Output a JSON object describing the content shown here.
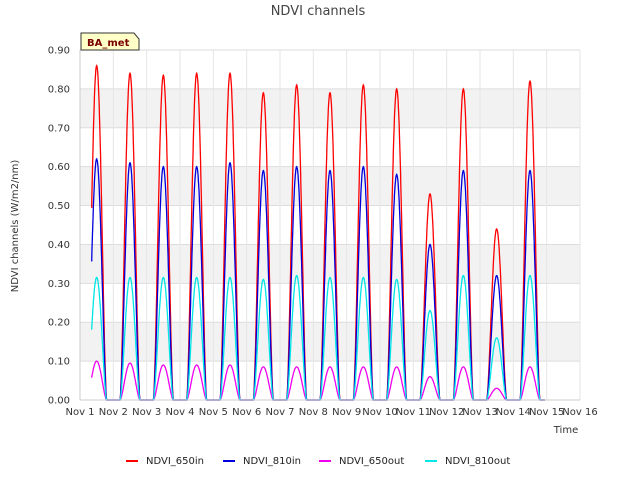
{
  "chart_data": {
    "type": "line",
    "title": "NDVI channels",
    "xlabel": "Time",
    "ylabel": "NDVI channels (W/m2/nm)",
    "xlim": [
      1,
      16
    ],
    "ylim": [
      0,
      0.9
    ],
    "x_ticks": [
      "Nov 1",
      "Nov 2",
      "Nov 3",
      "Nov 4",
      "Nov 5",
      "Nov 6",
      "Nov 7",
      "Nov 8",
      "Nov 9",
      "Nov 10",
      "Nov 11",
      "Nov 12",
      "Nov 13",
      "Nov 14",
      "Nov 15",
      "Nov 16"
    ],
    "y_ticks": [
      "0.00",
      "0.10",
      "0.20",
      "0.30",
      "0.40",
      "0.50",
      "0.60",
      "0.70",
      "0.80",
      "0.90"
    ],
    "annotation": "BA_met",
    "grid": true,
    "legend_position": "bottom",
    "series": [
      {
        "name": "NDVI_650in",
        "color": "#ff0000",
        "daily_peak_day": [
          1.5,
          2.5,
          3.5,
          4.5,
          5.5,
          6.5,
          7.5,
          8.5,
          9.5,
          10.5,
          11.5,
          12.5,
          13.5,
          14.5
        ],
        "daily_peak_value": [
          0.86,
          0.84,
          0.835,
          0.84,
          0.84,
          0.79,
          0.81,
          0.79,
          0.81,
          0.8,
          0.53,
          0.8,
          0.44,
          0.82
        ]
      },
      {
        "name": "NDVI_810in",
        "color": "#0000dd",
        "daily_peak_day": [
          1.5,
          2.5,
          3.5,
          4.5,
          5.5,
          6.5,
          7.5,
          8.5,
          9.5,
          10.5,
          11.5,
          12.5,
          13.5,
          14.5
        ],
        "daily_peak_value": [
          0.62,
          0.61,
          0.6,
          0.6,
          0.61,
          0.59,
          0.6,
          0.59,
          0.6,
          0.58,
          0.4,
          0.59,
          0.32,
          0.59
        ]
      },
      {
        "name": "NDVI_650out",
        "color": "#ee00ee",
        "daily_peak_day": [
          1.5,
          2.5,
          3.5,
          4.5,
          5.5,
          6.5,
          7.5,
          8.5,
          9.5,
          10.5,
          11.5,
          12.5,
          13.5,
          14.5
        ],
        "daily_peak_value": [
          0.1,
          0.095,
          0.09,
          0.09,
          0.09,
          0.085,
          0.085,
          0.085,
          0.085,
          0.085,
          0.06,
          0.085,
          0.03,
          0.085
        ]
      },
      {
        "name": "NDVI_810out",
        "color": "#00e5e5",
        "daily_peak_day": [
          1.5,
          2.5,
          3.5,
          4.5,
          5.5,
          6.5,
          7.5,
          8.5,
          9.5,
          10.5,
          11.5,
          12.5,
          13.5,
          14.5
        ],
        "daily_peak_value": [
          0.315,
          0.315,
          0.315,
          0.315,
          0.315,
          0.31,
          0.32,
          0.315,
          0.315,
          0.31,
          0.23,
          0.32,
          0.16,
          0.32
        ]
      }
    ]
  }
}
